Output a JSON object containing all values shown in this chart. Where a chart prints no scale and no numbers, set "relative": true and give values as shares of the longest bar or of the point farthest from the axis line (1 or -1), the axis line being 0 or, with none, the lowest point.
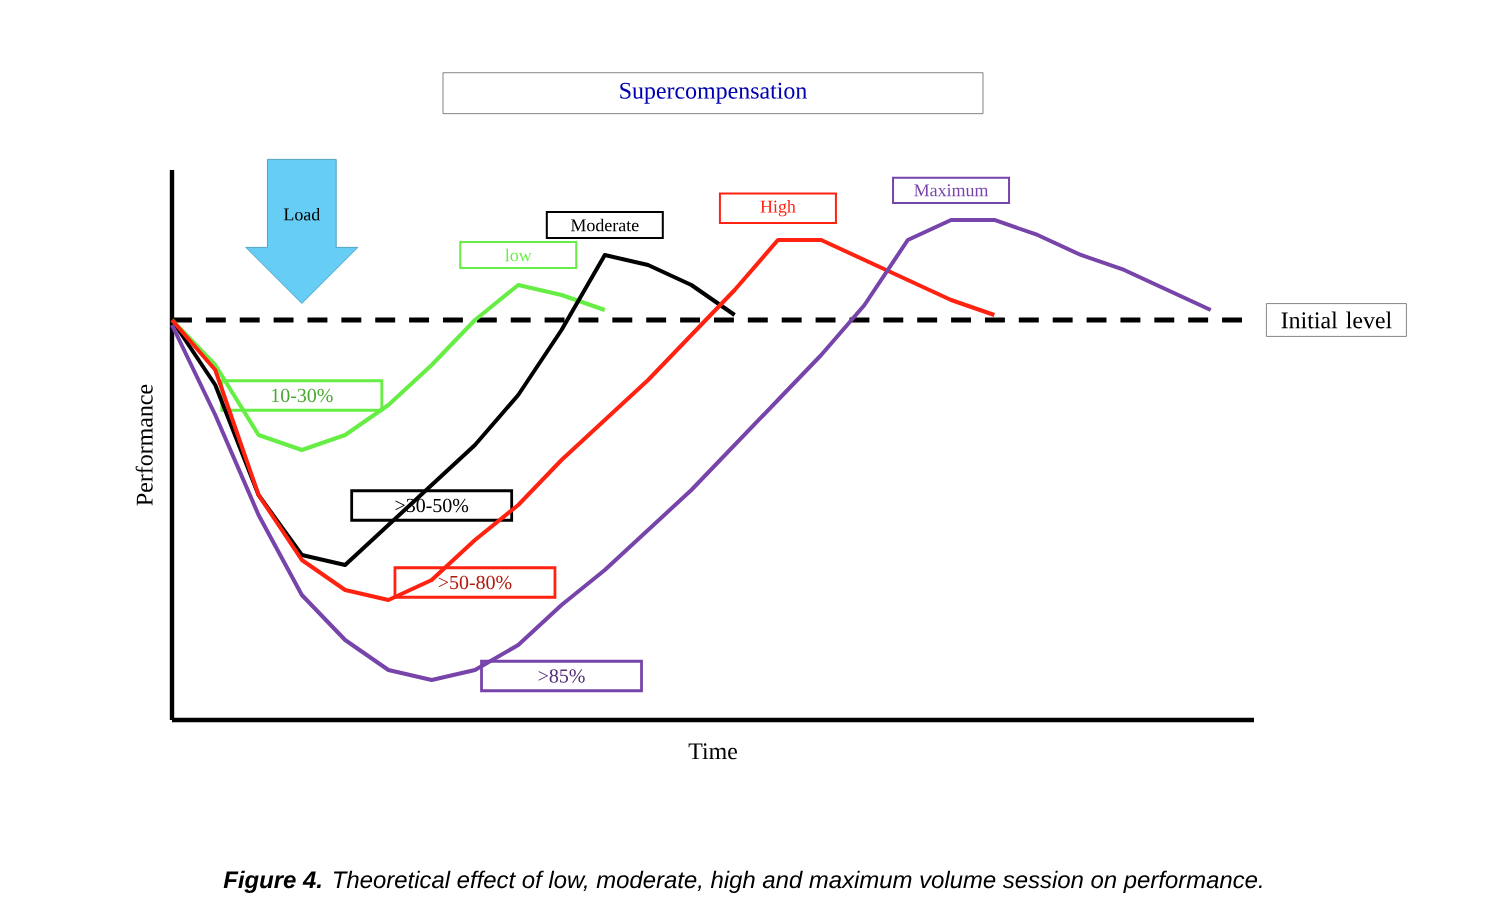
{
  "chart_data": {
    "type": "line",
    "relative": true,
    "title": "Supercompensation",
    "xlabel": "Time",
    "ylabel": "Performance",
    "categories": [
      null,
      null,
      null,
      null,
      null,
      null,
      null,
      null,
      null,
      null,
      null,
      null,
      null,
      null,
      null,
      null,
      null,
      null,
      null,
      null,
      null,
      null,
      null,
      null,
      null,
      null
    ],
    "tick_labels": false,
    "marker": "none",
    "line_style": "solid",
    "series": [
      {
        "name": "low",
        "color": "#66ee44",
        "values": [
          0.8,
          0.71,
          0.57,
          0.54,
          0.57,
          0.63,
          0.71,
          0.8,
          0.87,
          0.85,
          0.82,
          null,
          null,
          null,
          null,
          null,
          null,
          null,
          null,
          null,
          null,
          null,
          null,
          null,
          null,
          null
        ]
      },
      {
        "name": "Moderate",
        "color": "#000000",
        "values": [
          0.8,
          0.67,
          0.45,
          0.33,
          0.31,
          0.39,
          0.47,
          0.55,
          0.65,
          0.78,
          0.93,
          0.91,
          0.87,
          0.81,
          null,
          null,
          null,
          null,
          null,
          null,
          null,
          null,
          null,
          null,
          null,
          null
        ]
      },
      {
        "name": "High",
        "color": "#ff2211",
        "values": [
          0.8,
          0.7,
          0.45,
          0.32,
          0.26,
          0.24,
          0.28,
          0.36,
          0.43,
          0.52,
          0.6,
          0.68,
          0.77,
          0.86,
          0.96,
          0.96,
          0.92,
          0.88,
          0.84,
          0.81,
          null,
          null,
          null,
          null,
          null,
          null
        ]
      },
      {
        "name": "Maximum",
        "color": "#7744aa",
        "values": [
          0.79,
          0.61,
          0.41,
          0.25,
          0.16,
          0.1,
          0.08,
          0.1,
          0.15,
          0.23,
          0.3,
          0.38,
          0.46,
          0.55,
          0.64,
          0.73,
          0.83,
          0.96,
          1.0,
          1.0,
          0.97,
          0.93,
          0.9,
          0.86,
          0.82,
          null
        ]
      }
    ],
    "ref_lines": [
      {
        "axis": "y",
        "value": 0.8,
        "label": "Initial level",
        "line_style": "dashed",
        "color": "#000000"
      }
    ],
    "annotations": [
      "Load",
      "10-30%",
      ">30-50%",
      ">50-80%",
      ">85%",
      "**Figure 4.** Theoretical effect of low, moderate, high and maximum volume session on performance."
    ]
  }
}
